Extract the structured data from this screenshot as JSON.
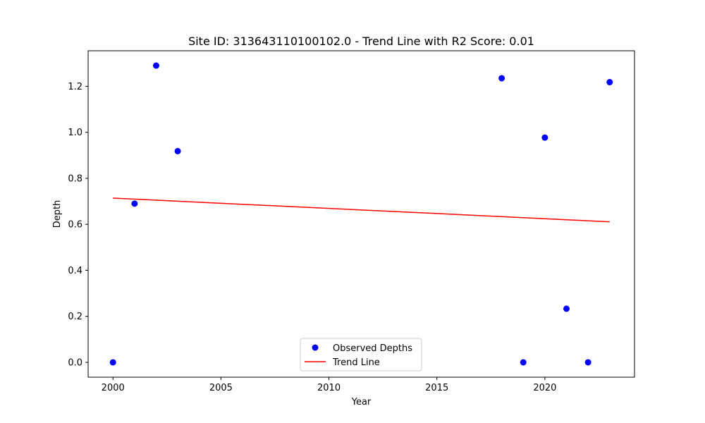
{
  "chart_data": {
    "type": "scatter",
    "title": "Site ID: 313643110100102.0 - Trend Line with R2 Score: 0.01",
    "xlabel": "Year",
    "ylabel": "Depth",
    "xlim": [
      1998.85,
      2024.15
    ],
    "ylim": [
      -0.0645,
      1.3545
    ],
    "xticks": [
      2000,
      2005,
      2010,
      2015,
      2020
    ],
    "xtick_labels": [
      "2000",
      "2005",
      "2010",
      "2015",
      "2020"
    ],
    "yticks": [
      0.0,
      0.2,
      0.4,
      0.6,
      0.8,
      1.0,
      1.2
    ],
    "ytick_labels": [
      "0.0",
      "0.2",
      "0.4",
      "0.6",
      "0.8",
      "1.0",
      "1.2"
    ],
    "grid": false,
    "legend_position": "bottom-center",
    "series": [
      {
        "name": "Observed Depths",
        "kind": "scatter",
        "color": "#0000ff",
        "points": [
          {
            "x": 2000,
            "y": 0.0
          },
          {
            "x": 2001,
            "y": 0.69
          },
          {
            "x": 2002,
            "y": 1.29
          },
          {
            "x": 2003,
            "y": 0.918
          },
          {
            "x": 2018,
            "y": 1.235
          },
          {
            "x": 2019,
            "y": 0.0
          },
          {
            "x": 2020,
            "y": 0.977
          },
          {
            "x": 2021,
            "y": 0.233
          },
          {
            "x": 2022,
            "y": 0.0
          },
          {
            "x": 2023,
            "y": 1.218
          }
        ]
      },
      {
        "name": "Trend Line",
        "kind": "line",
        "color": "#ff0000",
        "points": [
          {
            "x": 2000,
            "y": 0.714
          },
          {
            "x": 2023,
            "y": 0.611
          }
        ]
      }
    ]
  }
}
